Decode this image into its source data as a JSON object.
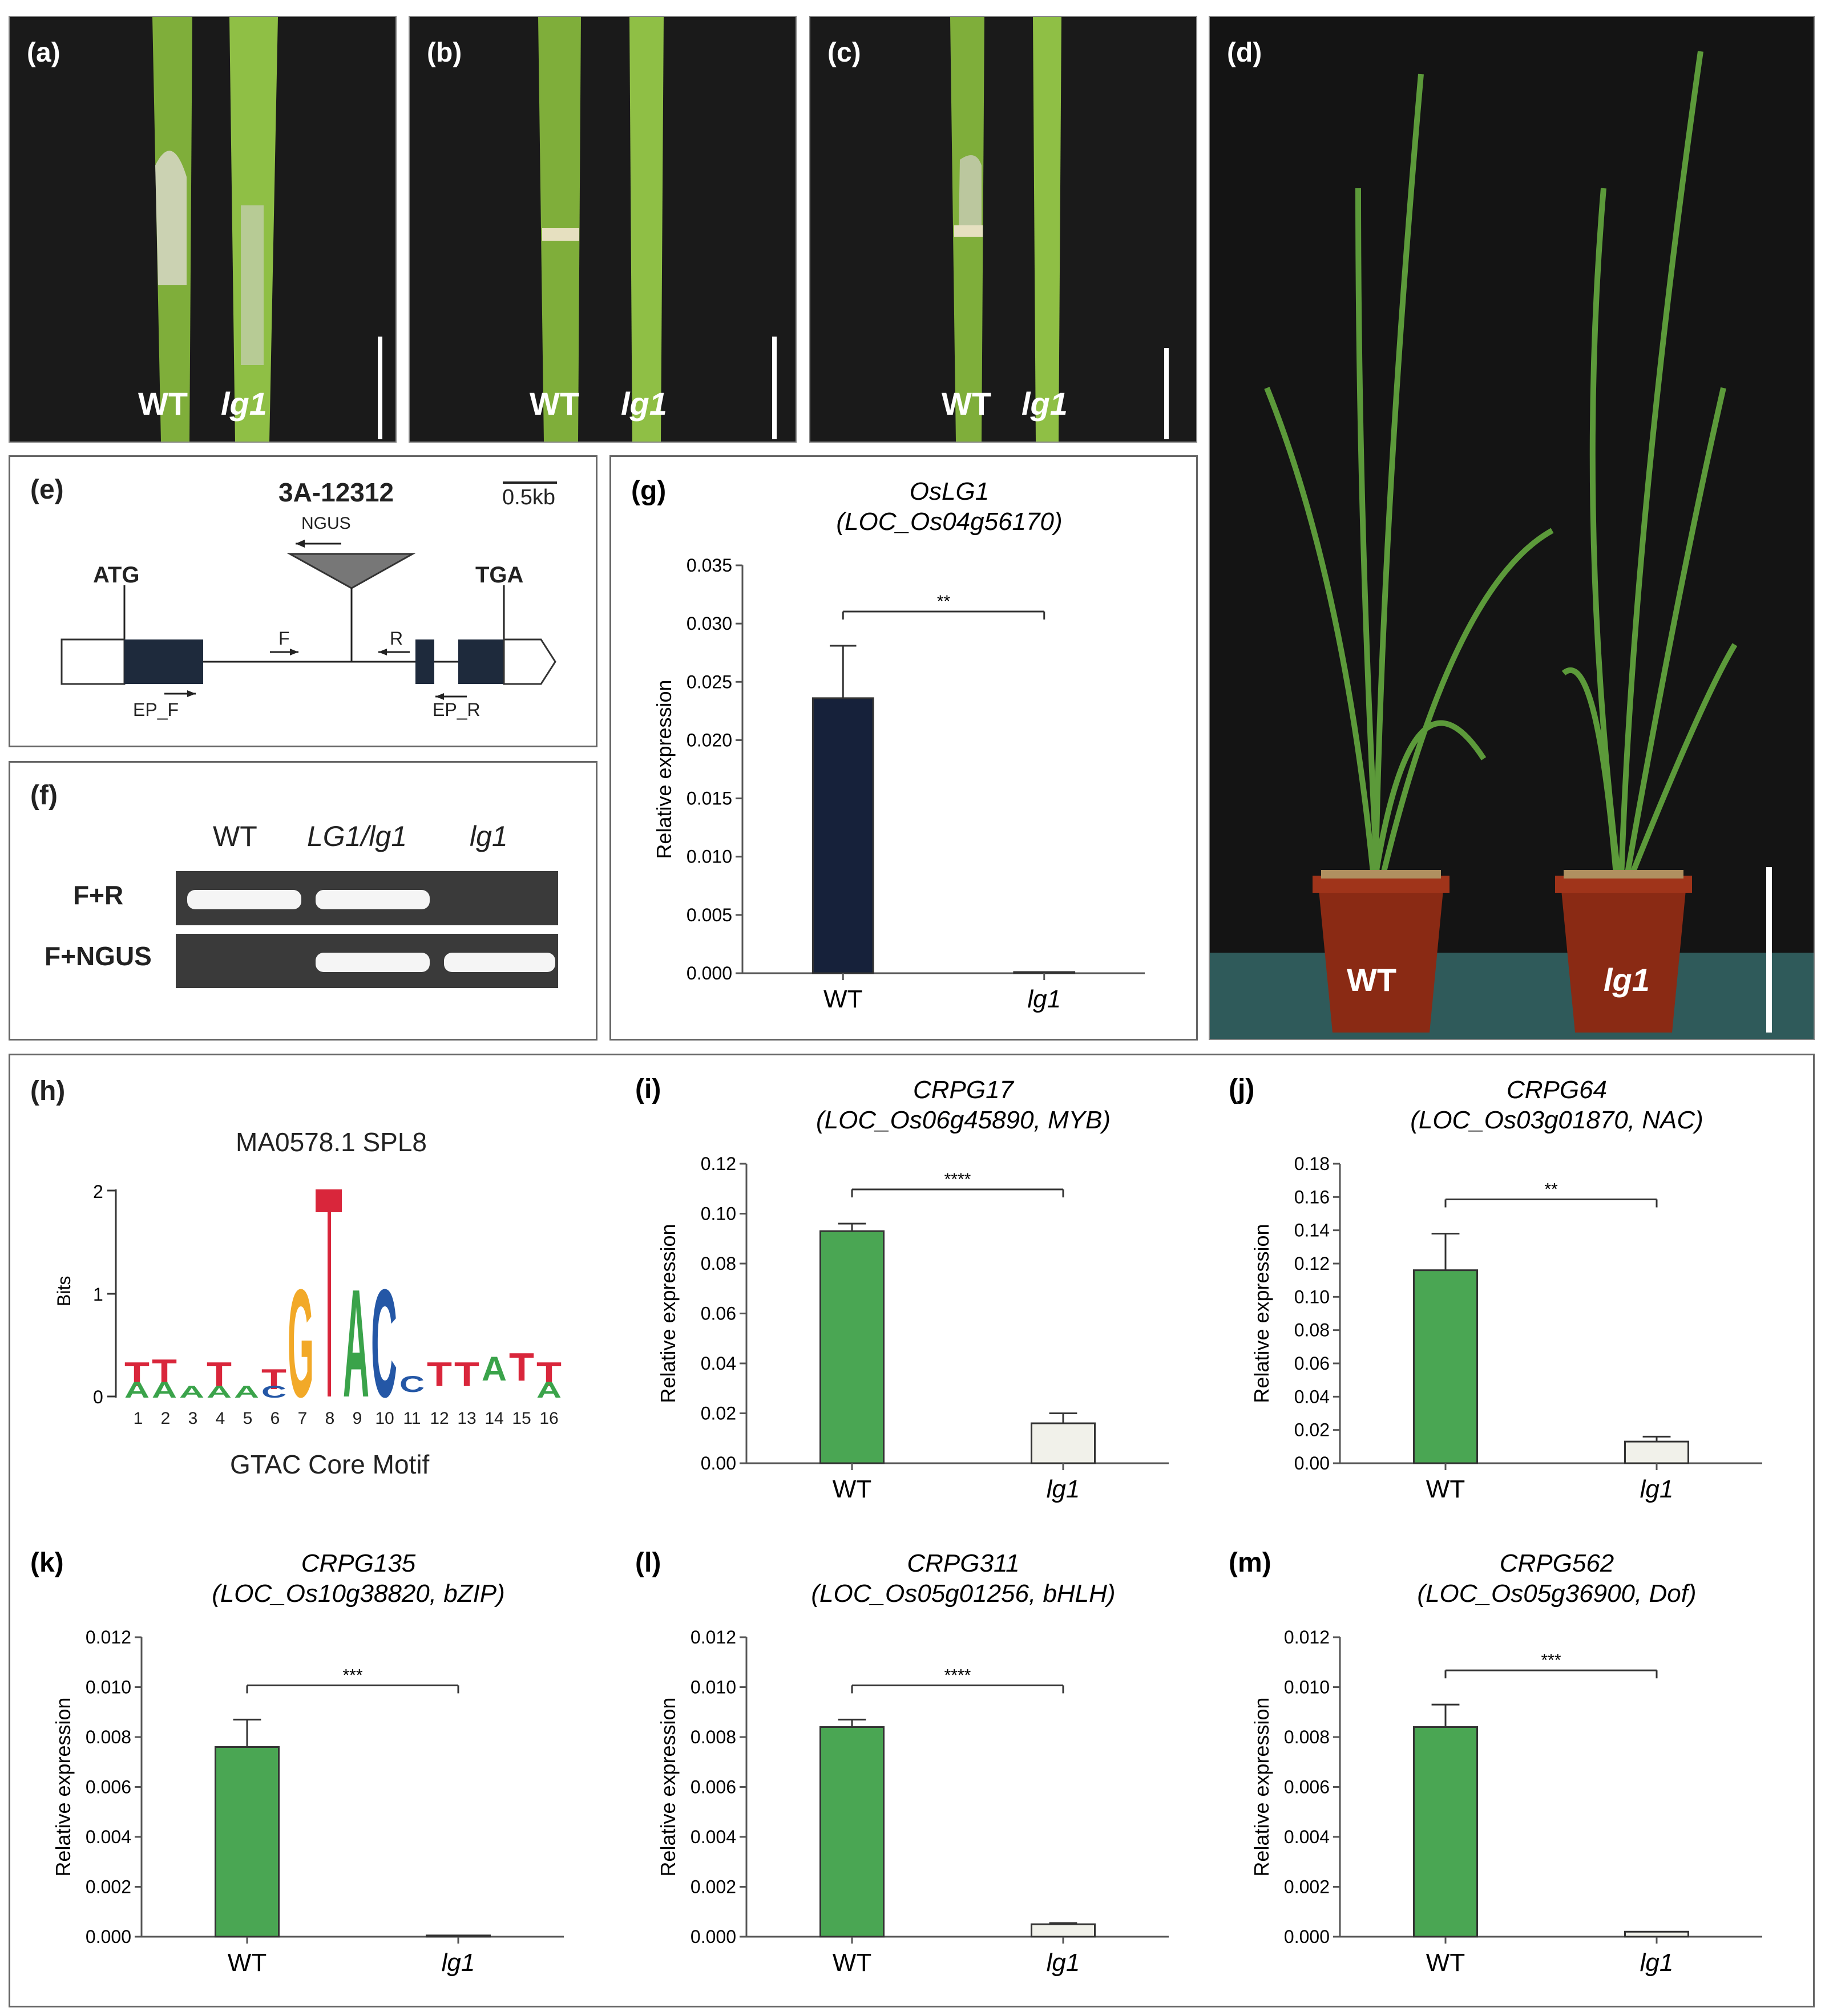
{
  "panels": {
    "a": {
      "label": "(a)",
      "wt": "WT",
      "mut": "lg1"
    },
    "b": {
      "label": "(b)",
      "wt": "WT",
      "mut": "lg1"
    },
    "c": {
      "label": "(c)",
      "wt": "WT",
      "mut": "lg1"
    },
    "d": {
      "label": "(d)",
      "wt": "WT",
      "mut": "lg1"
    },
    "e": {
      "label": "(e)",
      "title": "3A-12312",
      "scale": "0.5kb",
      "ngus": "NGUS",
      "atg": "ATG",
      "tga": "TGA",
      "f": "F",
      "r": "R",
      "ep_f": "EP_F",
      "ep_r": "EP_R"
    },
    "f": {
      "label": "(f)",
      "lanes": [
        "WT",
        "LG1/lg1",
        "lg1"
      ],
      "rows": [
        "F+R",
        "F+NGUS"
      ]
    },
    "h": {
      "label": "(h)",
      "title": "MA0578.1 SPL8",
      "ylabel": "Bits",
      "yticks": [
        "0",
        "1",
        "2"
      ],
      "positions": [
        "1",
        "2",
        "3",
        "4",
        "5",
        "6",
        "7",
        "8",
        "9",
        "10",
        "11",
        "12",
        "13",
        "14",
        "15",
        "16"
      ],
      "caption": "GTAC Core Motif"
    }
  },
  "colors": {
    "wt_dark": "#16213a",
    "wt_green": "#4aa653",
    "mut_light": "#f1f1ea",
    "letter_g": "#f2a928",
    "letter_t": "#d9263b",
    "letter_a": "#3aa34a",
    "letter_c": "#2457a6"
  },
  "chart_data": [
    {
      "panel": "g",
      "type": "bar",
      "label": "(g)",
      "title": "OsLG1",
      "subtitle": "(LOC_Os04g56170)",
      "ylabel": "Relative expression",
      "categories": [
        "WT",
        "lg1"
      ],
      "values": [
        0.0236,
        0.0001
      ],
      "errors": [
        0.0045,
        0
      ],
      "ylim": [
        0,
        0.035
      ],
      "yticks": [
        "0.000",
        "0.005",
        "0.010",
        "0.015",
        "0.020",
        "0.025",
        "0.030",
        "0.035"
      ],
      "sig": "**",
      "colors": [
        "#16213a",
        "#f1f1ea"
      ]
    },
    {
      "panel": "i",
      "type": "bar",
      "label": "(i)",
      "title": "CRPG17",
      "subtitle": "(LOC_Os06g45890, MYB)",
      "ylabel": "Relative expression",
      "categories": [
        "WT",
        "lg1"
      ],
      "values": [
        0.093,
        0.016
      ],
      "errors": [
        0.003,
        0.004
      ],
      "ylim": [
        0,
        0.12
      ],
      "yticks": [
        "0.00",
        "0.02",
        "0.04",
        "0.06",
        "0.08",
        "0.10",
        "0.12"
      ],
      "sig": "****",
      "colors": [
        "#4aa653",
        "#f1f1ea"
      ]
    },
    {
      "panel": "j",
      "type": "bar",
      "label": "(j)",
      "title": "CRPG64",
      "subtitle": "(LOC_Os03g01870, NAC)",
      "ylabel": "Relative expression",
      "categories": [
        "WT",
        "lg1"
      ],
      "values": [
        0.116,
        0.013
      ],
      "errors": [
        0.022,
        0.003
      ],
      "ylim": [
        0,
        0.18
      ],
      "yticks": [
        "0.00",
        "0.02",
        "0.04",
        "0.06",
        "0.08",
        "0.10",
        "0.12",
        "0.14",
        "0.16",
        "0.18"
      ],
      "sig": "**",
      "colors": [
        "#4aa653",
        "#f1f1ea"
      ]
    },
    {
      "panel": "k",
      "type": "bar",
      "label": "(k)",
      "title": "CRPG135",
      "subtitle": "(LOC_Os10g38820, bZIP)",
      "ylabel": "Relative expression",
      "categories": [
        "WT",
        "lg1"
      ],
      "values": [
        0.0076,
        5e-05
      ],
      "errors": [
        0.0011,
        0
      ],
      "ylim": [
        0,
        0.012
      ],
      "yticks": [
        "0.000",
        "0.002",
        "0.004",
        "0.006",
        "0.008",
        "0.010",
        "0.012"
      ],
      "sig": "***",
      "colors": [
        "#4aa653",
        "#f1f1ea"
      ]
    },
    {
      "panel": "l",
      "type": "bar",
      "label": "(l)",
      "title": "CRPG311",
      "subtitle": "(LOC_Os05g01256, bHLH)",
      "ylabel": "Relative expression",
      "categories": [
        "WT",
        "lg1"
      ],
      "values": [
        0.0084,
        0.0005
      ],
      "errors": [
        0.0003,
        5e-05
      ],
      "ylim": [
        0,
        0.012
      ],
      "yticks": [
        "0.000",
        "0.002",
        "0.004",
        "0.006",
        "0.008",
        "0.010",
        "0.012"
      ],
      "sig": "****",
      "colors": [
        "#4aa653",
        "#f1f1ea"
      ]
    },
    {
      "panel": "m",
      "type": "bar",
      "label": "(m)",
      "title": "CRPG562",
      "subtitle": "(LOC_Os05g36900, Dof)",
      "ylabel": "Relative expression",
      "categories": [
        "WT",
        "lg1"
      ],
      "values": [
        0.0084,
        0.0002
      ],
      "errors": [
        0.0009,
        0
      ],
      "ylim": [
        0,
        0.012
      ],
      "yticks": [
        "0.000",
        "0.002",
        "0.004",
        "0.006",
        "0.008",
        "0.010",
        "0.012"
      ],
      "sig": "***",
      "colors": [
        "#4aa653",
        "#f1f1ea"
      ]
    }
  ]
}
